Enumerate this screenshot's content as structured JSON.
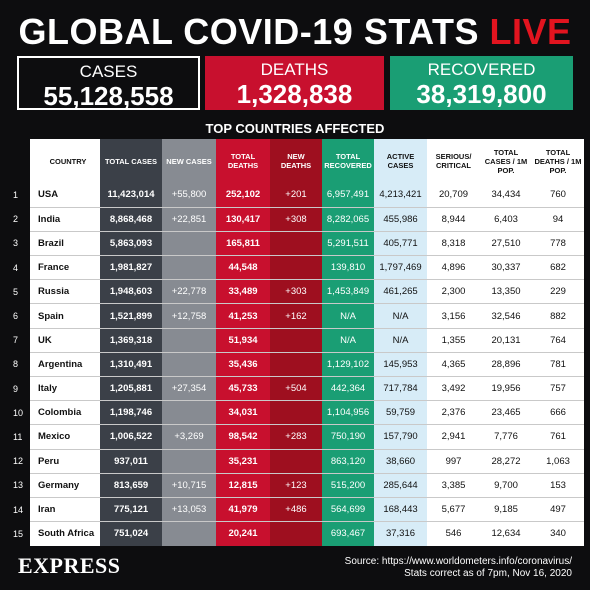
{
  "title": {
    "main": "GLOBAL COVID-19 STATS",
    "live": "LIVE"
  },
  "totals": {
    "cases": {
      "label": "CASES",
      "value": "55,128,558"
    },
    "deaths": {
      "label": "DEATHS",
      "value": "1,328,838"
    },
    "recovered": {
      "label": "RECOVERED",
      "value": "38,319,800"
    }
  },
  "subtitle": "TOP COUNTRIES AFFECTED",
  "headers": [
    "COUNTRY",
    "TOTAL CASES",
    "NEW CASES",
    "TOTAL DEATHS",
    "NEW DEATHS",
    "TOTAL RECOVERED",
    "ACTIVE CASES",
    "SERIOUS/ CRITICAL",
    "TOTAL CASES / 1M POP.",
    "TOTAL DEATHS / 1M POP."
  ],
  "rows": [
    {
      "rank": "1",
      "country": "USA",
      "total_cases": "11,423,014",
      "new_cases": "+55,800",
      "total_deaths": "252,102",
      "new_deaths": "+201",
      "total_recovered": "6,957,491",
      "active": "4,213,421",
      "serious": "20,709",
      "cases_1m": "34,434",
      "deaths_1m": "760"
    },
    {
      "rank": "2",
      "country": "India",
      "total_cases": "8,868,468",
      "new_cases": "+22,851",
      "total_deaths": "130,417",
      "new_deaths": "+308",
      "total_recovered": "8,282,065",
      "active": "455,986",
      "serious": "8,944",
      "cases_1m": "6,403",
      "deaths_1m": "94"
    },
    {
      "rank": "3",
      "country": "Brazil",
      "total_cases": "5,863,093",
      "new_cases": "",
      "total_deaths": "165,811",
      "new_deaths": "",
      "total_recovered": "5,291,511",
      "active": "405,771",
      "serious": "8,318",
      "cases_1m": "27,510",
      "deaths_1m": "778"
    },
    {
      "rank": "4",
      "country": "France",
      "total_cases": "1,981,827",
      "new_cases": "",
      "total_deaths": "44,548",
      "new_deaths": "",
      "total_recovered": "139,810",
      "active": "1,797,469",
      "serious": "4,896",
      "cases_1m": "30,337",
      "deaths_1m": "682"
    },
    {
      "rank": "5",
      "country": "Russia",
      "total_cases": "1,948,603",
      "new_cases": "+22,778",
      "total_deaths": "33,489",
      "new_deaths": "+303",
      "total_recovered": "1,453,849",
      "active": "461,265",
      "serious": "2,300",
      "cases_1m": "13,350",
      "deaths_1m": "229"
    },
    {
      "rank": "6",
      "country": "Spain",
      "total_cases": "1,521,899",
      "new_cases": "+12,758",
      "total_deaths": "41,253",
      "new_deaths": "+162",
      "total_recovered": "N/A",
      "active": "N/A",
      "serious": "3,156",
      "cases_1m": "32,546",
      "deaths_1m": "882"
    },
    {
      "rank": "7",
      "country": "UK",
      "total_cases": "1,369,318",
      "new_cases": "",
      "total_deaths": "51,934",
      "new_deaths": "",
      "total_recovered": "N/A",
      "active": "N/A",
      "serious": "1,355",
      "cases_1m": "20,131",
      "deaths_1m": "764"
    },
    {
      "rank": "8",
      "country": "Argentina",
      "total_cases": "1,310,491",
      "new_cases": "",
      "total_deaths": "35,436",
      "new_deaths": "",
      "total_recovered": "1,129,102",
      "active": "145,953",
      "serious": "4,365",
      "cases_1m": "28,896",
      "deaths_1m": "781"
    },
    {
      "rank": "9",
      "country": "Italy",
      "total_cases": "1,205,881",
      "new_cases": "+27,354",
      "total_deaths": "45,733",
      "new_deaths": "+504",
      "total_recovered": "442,364",
      "active": "717,784",
      "serious": "3,492",
      "cases_1m": "19,956",
      "deaths_1m": "757"
    },
    {
      "rank": "10",
      "country": "Colombia",
      "total_cases": "1,198,746",
      "new_cases": "",
      "total_deaths": "34,031",
      "new_deaths": "",
      "total_recovered": "1,104,956",
      "active": "59,759",
      "serious": "2,376",
      "cases_1m": "23,465",
      "deaths_1m": "666"
    },
    {
      "rank": "11",
      "country": "Mexico",
      "total_cases": "1,006,522",
      "new_cases": "+3,269",
      "total_deaths": "98,542",
      "new_deaths": "+283",
      "total_recovered": "750,190",
      "active": "157,790",
      "serious": "2,941",
      "cases_1m": "7,776",
      "deaths_1m": "761"
    },
    {
      "rank": "12",
      "country": "Peru",
      "total_cases": "937,011",
      "new_cases": "",
      "total_deaths": "35,231",
      "new_deaths": "",
      "total_recovered": "863,120",
      "active": "38,660",
      "serious": "997",
      "cases_1m": "28,272",
      "deaths_1m": "1,063"
    },
    {
      "rank": "13",
      "country": "Germany",
      "total_cases": "813,659",
      "new_cases": "+10,715",
      "total_deaths": "12,815",
      "new_deaths": "+123",
      "total_recovered": "515,200",
      "active": "285,644",
      "serious": "3,385",
      "cases_1m": "9,700",
      "deaths_1m": "153"
    },
    {
      "rank": "14",
      "country": "Iran",
      "total_cases": "775,121",
      "new_cases": "+13,053",
      "total_deaths": "41,979",
      "new_deaths": "+486",
      "total_recovered": "564,699",
      "active": "168,443",
      "serious": "5,677",
      "cases_1m": "9,185",
      "deaths_1m": "497"
    },
    {
      "rank": "15",
      "country": "South Africa",
      "total_cases": "751,024",
      "new_cases": "",
      "total_deaths": "20,241",
      "new_deaths": "",
      "total_recovered": "693,467",
      "active": "37,316",
      "serious": "546",
      "cases_1m": "12,634",
      "deaths_1m": "340"
    }
  ],
  "footer": {
    "logo": "EXPRESS",
    "source": "Source: https://www.worldometers.info/coronavirus/",
    "date": "Stats correct as of 7pm, Nov 16, 2020"
  },
  "colors": {
    "red": "#c8102e",
    "green": "#1a9e74",
    "dark": "#0d0d0f"
  }
}
